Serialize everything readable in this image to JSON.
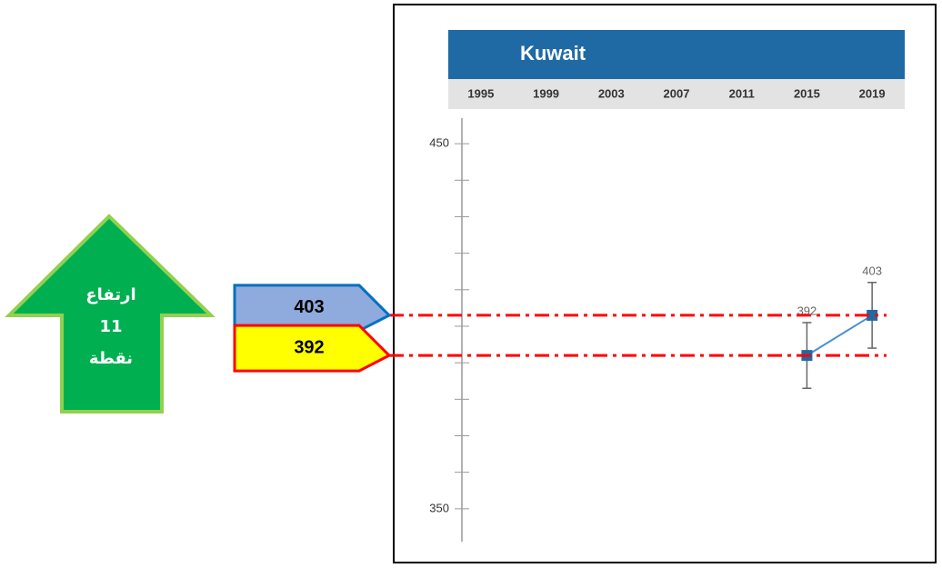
{
  "chart_data": {
    "type": "line",
    "title": "Kuwait",
    "categories": [
      "1995",
      "1999",
      "2003",
      "2007",
      "2011",
      "2015",
      "2019"
    ],
    "series": [
      {
        "name": "Kuwait",
        "color": "#1f6aa5",
        "values": [
          null,
          null,
          null,
          null,
          null,
          392,
          403
        ],
        "errors": [
          null,
          null,
          null,
          null,
          null,
          9,
          9
        ]
      }
    ],
    "ylim": [
      341,
      457
    ],
    "yticks": [
      350,
      450
    ],
    "yticks_minor": [
      360,
      370,
      380,
      390,
      400,
      410,
      420,
      430,
      440
    ],
    "reference_lines": [
      {
        "value": 403,
        "color": "#ff0000",
        "box_fill": "#8faadc",
        "box_stroke": "#0070c0"
      },
      {
        "value": 392,
        "color": "#ff0000",
        "box_fill": "#ffff00",
        "box_stroke": "#ff0000"
      }
    ],
    "arrow": {
      "lines": [
        "ارتفاع",
        "11",
        "نقطة"
      ],
      "color": "#00b050",
      "stroke": "#92d050"
    }
  }
}
